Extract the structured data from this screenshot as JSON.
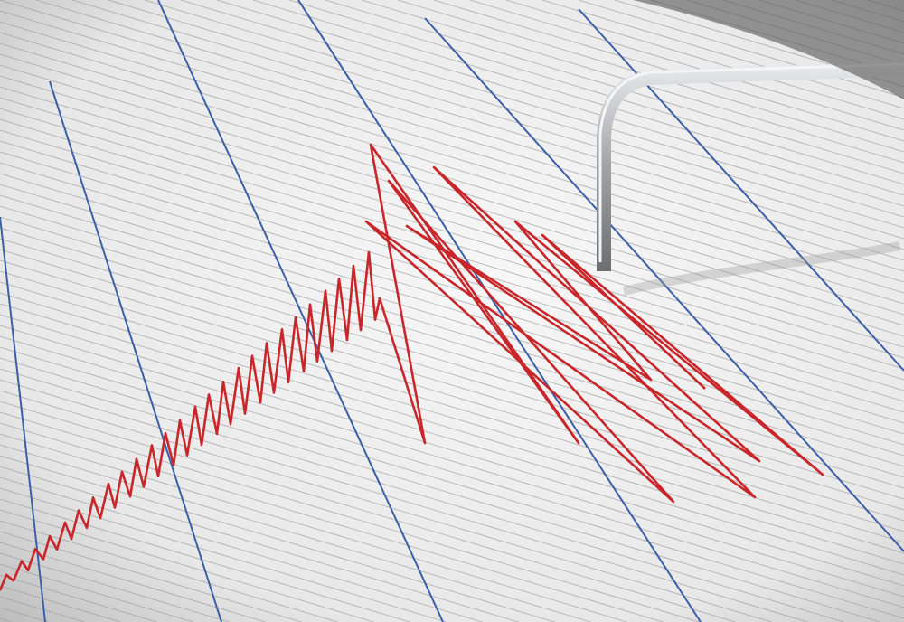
{
  "scene": {
    "subject": "seismograph",
    "colors": {
      "paper": "#f2f2f2",
      "grid_line": "#9a9a9a",
      "blue_line": "#3a5fa8",
      "trace": "#c8262a",
      "needle": "#a9abae"
    }
  }
}
